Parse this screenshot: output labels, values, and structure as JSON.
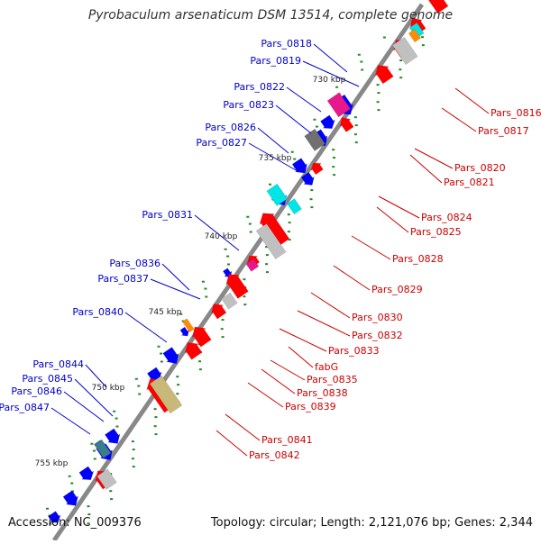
{
  "title": "Pyrobaculum arsenaticum DSM 13514, complete genome",
  "footer": {
    "accession": "Accession: NC_009376",
    "stats": "Topology: circular; Length: 2,121,076 bp; Genes: 2,344"
  },
  "colors": {
    "backbone": "#888888",
    "forward_gene": "#ff0000",
    "reverse_gene": "#0000ff",
    "forward_label": "#cc0000",
    "reverse_label": "#0000cc",
    "ticks": "#228b22",
    "cyan": "#00e5e5",
    "magenta": "#e6188c",
    "grey": "#c0c0c0",
    "dark_grey": "#707070",
    "khaki": "#c8b87a",
    "orange": "#ff8c00",
    "teal": "#3a7d8c"
  },
  "scale_labels": [
    "730 kbp",
    "735 kbp",
    "740 kbp",
    "745 kbp",
    "750 kbp",
    "755 kbp"
  ],
  "left_labels": [
    "Pars_0818",
    "Pars_0819",
    "Pars_0822",
    "Pars_0823",
    "Pars_0826",
    "Pars_0827",
    "Pars_0831",
    "Pars_0836",
    "Pars_0837",
    "Pars_0840",
    "Pars_0844",
    "Pars_0845",
    "Pars_0846",
    "Pars_0847"
  ],
  "right_labels": [
    "Pars_0816",
    "Pars_0817",
    "Pars_0820",
    "Pars_0821",
    "Pars_0824",
    "Pars_0825",
    "Pars_0828",
    "Pars_0829",
    "Pars_0830",
    "Pars_0832",
    "Pars_0833",
    "fabG",
    "Pars_0835",
    "Pars_0838",
    "Pars_0839",
    "Pars_0841",
    "Pars_0842"
  ]
}
